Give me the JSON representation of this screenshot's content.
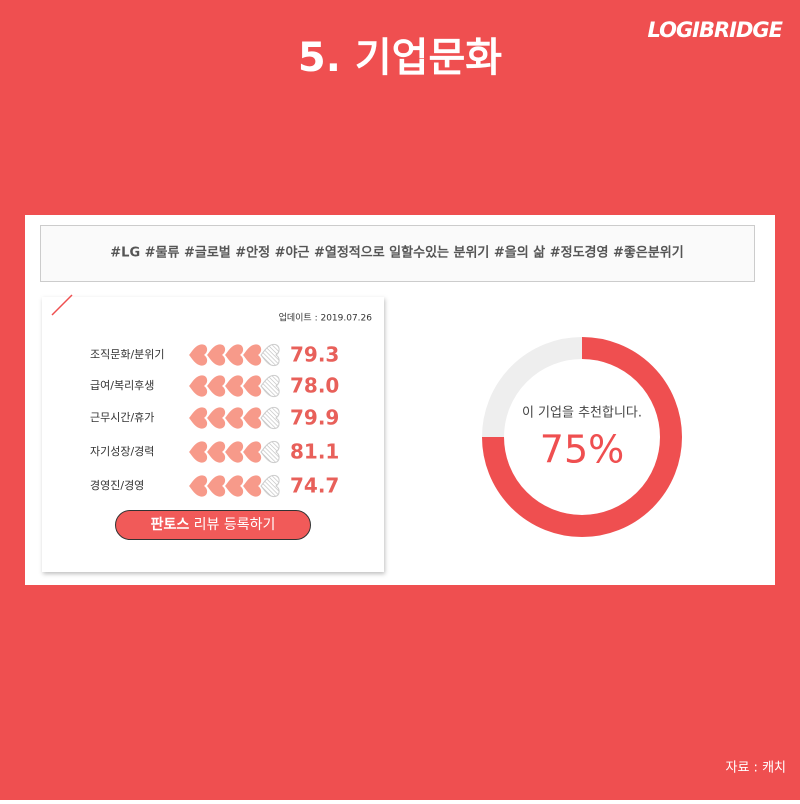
{
  "header": {
    "title": "5. 기업문화",
    "brand": "LOGIBRIDGE"
  },
  "tags": "#LG #물류 #글로벌 #안정 #야근 #열정적으로 일할수있는 분위기 #을의 삶 #정도경영 #좋은분위기",
  "ratings": {
    "updated": "업데이트 : 2019.07.26",
    "labels": [
      "조직문화/분위기",
      "급여/복리후생",
      "근무시간/휴가",
      "자기성장/경력",
      "경영진/경영"
    ],
    "values": [
      79.3,
      78.0,
      79.9,
      81.1,
      74.7
    ],
    "value_labels": [
      "79.3",
      "78.0",
      "79.9",
      "81.1",
      "74.7"
    ],
    "button": {
      "bold": "판토스",
      "rest": "리뷰 등록하기"
    }
  },
  "recommend": {
    "type": "pie",
    "caption": "이 기업을 추천합니다.",
    "value": 75,
    "value_label": "75%",
    "color": "#ef4f50"
  },
  "source": "자료 : 캐치"
}
